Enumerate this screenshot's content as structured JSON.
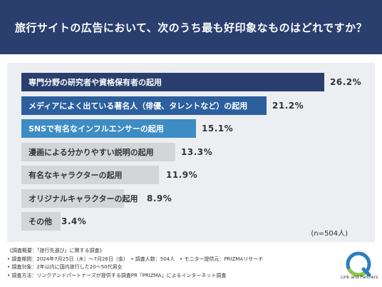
{
  "header": {
    "title": "旅行サイトの広告において、次のうち最も好印象なものはどれですか？"
  },
  "chart_data": {
    "type": "bar",
    "orientation": "horizontal",
    "categories": [
      "専門分野の研究者や資格保有者の起用",
      "メディアによく出ている著名人（俳優、タレントなど）の起用",
      "SNSで有名なインフルエンサーの起用",
      "漫画による分かりやすい説明の起用",
      "有名なキャラクターの起用",
      "オリジナルキャラクターの起用",
      "その他"
    ],
    "values": [
      26.2,
      21.2,
      15.1,
      13.3,
      11.9,
      8.9,
      3.4
    ],
    "value_labels": [
      "26.2%",
      "21.2%",
      "15.1%",
      "13.3%",
      "11.9%",
      "8.9%",
      "3.4%"
    ],
    "bar_colors": [
      "#2a3f6e",
      "#2c5f9e",
      "#3d8cc4",
      "#d4d5d8",
      "#d4d5d8",
      "#d4d5d8",
      "#d4d5d8"
    ],
    "label_colors": [
      "#ffffff",
      "#ffffff",
      "#ffffff",
      "#333333",
      "#333333",
      "#333333",
      "#333333"
    ],
    "note": "(n=504人)"
  },
  "footer": {
    "lines": [
      "《調査概要：「旅行先選び」に関する調査》",
      "• 調査期間：2024年7月25日（木）〜7月26日（金）　• 調査人数：504人　• モニター提供元：PRIZMAリサーチ",
      "• 調査対象：2年以内に国内旅行した20〜50代男女",
      "• 調査方法：リンクアンドパートナーズが提供する調査PR「PRIZMA」によるインターネット調査"
    ]
  },
  "logo": {
    "text": "Link and Partners"
  }
}
